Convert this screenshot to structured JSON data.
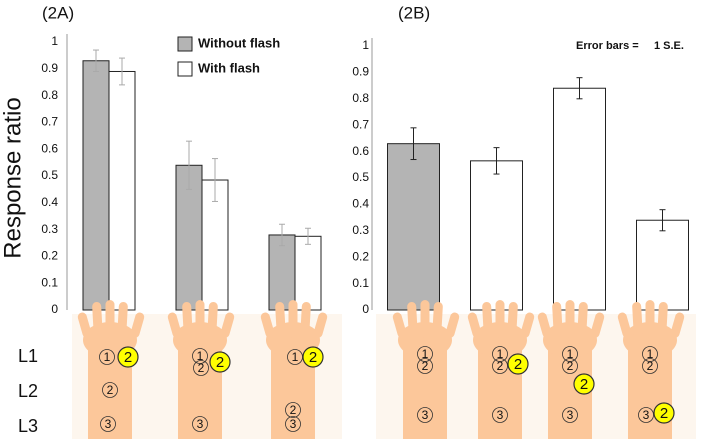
{
  "chart_data": [
    {
      "type": "bar",
      "title": "(2A)",
      "y_label": "Response ratio",
      "categories": [
        null,
        null,
        null
      ],
      "series": [
        {
          "name": "Without flash",
          "color": "#b4b4b4",
          "values": [
            0.93,
            0.54,
            0.28
          ],
          "errors": [
            0.04,
            0.09,
            0.04
          ]
        },
        {
          "name": "With flash",
          "color": "#ffffff",
          "values": [
            0.89,
            0.485,
            0.275
          ],
          "errors": [
            0.05,
            0.08,
            0.03
          ]
        }
      ],
      "error_color": "#aaaaaa",
      "ylim": [
        0,
        1
      ],
      "yticks": [
        0,
        0.1,
        0.2,
        0.3,
        0.4,
        0.5,
        0.6,
        0.7,
        0.8,
        0.9,
        1
      ]
    },
    {
      "type": "bar",
      "title": "(2B)",
      "annotation": "Error bars =     1 S.E.",
      "categories": [
        null,
        null,
        null,
        null
      ],
      "values": [
        0.63,
        0.565,
        0.84,
        0.34
      ],
      "errors": [
        0.06,
        0.05,
        0.04,
        0.04
      ],
      "colors": [
        "#b4b4b4",
        "#ffffff",
        "#ffffff",
        "#ffffff"
      ],
      "error_color": "#222222",
      "ylim": [
        0,
        1
      ],
      "yticks": [
        0,
        0.1,
        0.2,
        0.3,
        0.4,
        0.5,
        0.6,
        0.7,
        0.8,
        0.9,
        1
      ]
    }
  ],
  "illustration": {
    "row_labels": [
      "L1",
      "L2",
      "L3"
    ],
    "hands": [
      {
        "markers": [
          {
            "label": "1",
            "highlight": false
          },
          {
            "label": "2",
            "highlight": true
          },
          {
            "label": "2",
            "highlight": false
          },
          {
            "label": "3",
            "highlight": false
          }
        ]
      },
      {
        "markers": [
          {
            "label": "1",
            "highlight": false
          },
          {
            "label": "2",
            "highlight": false
          },
          {
            "label": "2",
            "highlight": true
          },
          {
            "label": "3",
            "highlight": false
          }
        ]
      },
      {
        "markers": [
          {
            "label": "1",
            "highlight": false
          },
          {
            "label": "2",
            "highlight": true
          },
          {
            "label": "2",
            "highlight": false
          },
          {
            "label": "3",
            "highlight": false
          }
        ]
      },
      {
        "markers": [
          {
            "label": "1",
            "highlight": false
          },
          {
            "label": "2",
            "highlight": false
          },
          {
            "label": "3",
            "highlight": false
          }
        ]
      },
      {
        "markers": [
          {
            "label": "1",
            "highlight": false
          },
          {
            "label": "2",
            "highlight": false
          },
          {
            "label": "2",
            "highlight": true
          },
          {
            "label": "3",
            "highlight": false
          }
        ]
      },
      {
        "markers": [
          {
            "label": "1",
            "highlight": false
          },
          {
            "label": "2",
            "highlight": false
          },
          {
            "label": "2",
            "highlight": true
          },
          {
            "label": "3",
            "highlight": false
          }
        ]
      },
      {
        "markers": [
          {
            "label": "1",
            "highlight": false
          },
          {
            "label": "2",
            "highlight": false
          },
          {
            "label": "3",
            "highlight": false
          },
          {
            "label": "2",
            "highlight": true
          }
        ]
      }
    ]
  }
}
